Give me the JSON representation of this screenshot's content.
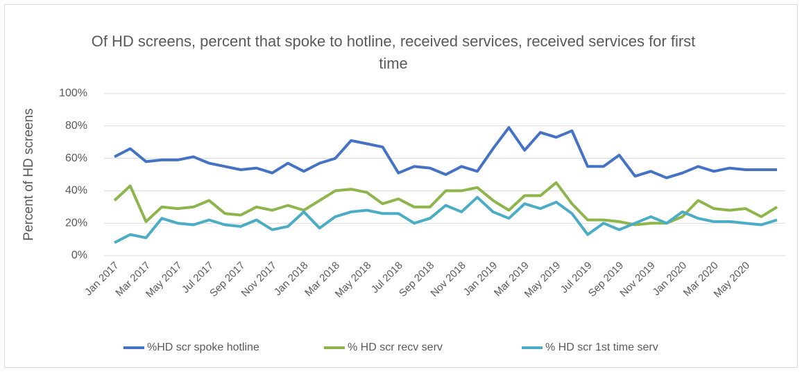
{
  "chart_data": {
    "type": "line",
    "title": "Of HD screens, percent that spoke to hotline, received services, received services for first time",
    "ylabel": "Percent of HD screens",
    "categories": [
      "Jan 2017",
      null,
      "Mar 2017",
      null,
      "May 2017",
      null,
      "Jul 2017",
      null,
      "Sep 2017",
      null,
      "Nov 2017",
      null,
      "Jan 2018",
      null,
      "Mar 2018",
      null,
      "May 2018",
      null,
      "Jul 2018",
      null,
      "Sep 2018",
      null,
      "Nov 2018",
      null,
      "Jan 2019",
      null,
      "Mar 2019",
      null,
      "May 2019",
      null,
      "Jul 2019",
      null,
      "Sep 2019",
      null,
      "Nov 2019",
      null,
      "Jan 2020",
      null,
      "Mar 2020",
      null,
      "May 2020",
      null,
      null
    ],
    "series": [
      {
        "name": "%HD scr spoke hotline",
        "color": "#4472c4",
        "values": [
          61,
          66,
          58,
          59,
          59,
          61,
          57,
          55,
          53,
          54,
          51,
          57,
          52,
          57,
          60,
          71,
          69,
          67,
          51,
          55,
          54,
          50,
          55,
          52,
          66,
          79,
          65,
          76,
          73,
          77,
          55,
          55,
          62,
          49,
          52,
          48,
          51,
          55,
          52,
          54,
          53,
          53,
          53
        ]
      },
      {
        "name": "% HD scr recv serv",
        "color": "#8db54b",
        "values": [
          34,
          43,
          21,
          30,
          29,
          30,
          34,
          26,
          25,
          30,
          28,
          31,
          28,
          34,
          40,
          41,
          39,
          32,
          35,
          30,
          30,
          40,
          40,
          42,
          34,
          28,
          37,
          37,
          45,
          32,
          22,
          22,
          21,
          19,
          20,
          20,
          24,
          34,
          29,
          28,
          29,
          24,
          30
        ]
      },
      {
        "name": "% HD scr 1st time serv",
        "color": "#4bacc6",
        "values": [
          8,
          13,
          11,
          23,
          20,
          19,
          22,
          19,
          18,
          22,
          16,
          18,
          27,
          17,
          24,
          27,
          28,
          26,
          26,
          20,
          23,
          31,
          27,
          36,
          27,
          23,
          32,
          29,
          33,
          26,
          13,
          20,
          16,
          20,
          24,
          20,
          27,
          23,
          21,
          21,
          20,
          19,
          22
        ]
      }
    ],
    "ylim": [
      0,
      100
    ],
    "yticks": [
      {
        "value": 0,
        "label": "0%"
      },
      {
        "value": 20,
        "label": "20%"
      },
      {
        "value": 40,
        "label": "40%"
      },
      {
        "value": 60,
        "label": "60%"
      },
      {
        "value": 80,
        "label": "80%"
      },
      {
        "value": 100,
        "label": "100%"
      }
    ],
    "grid": true,
    "legend": "bottom"
  }
}
